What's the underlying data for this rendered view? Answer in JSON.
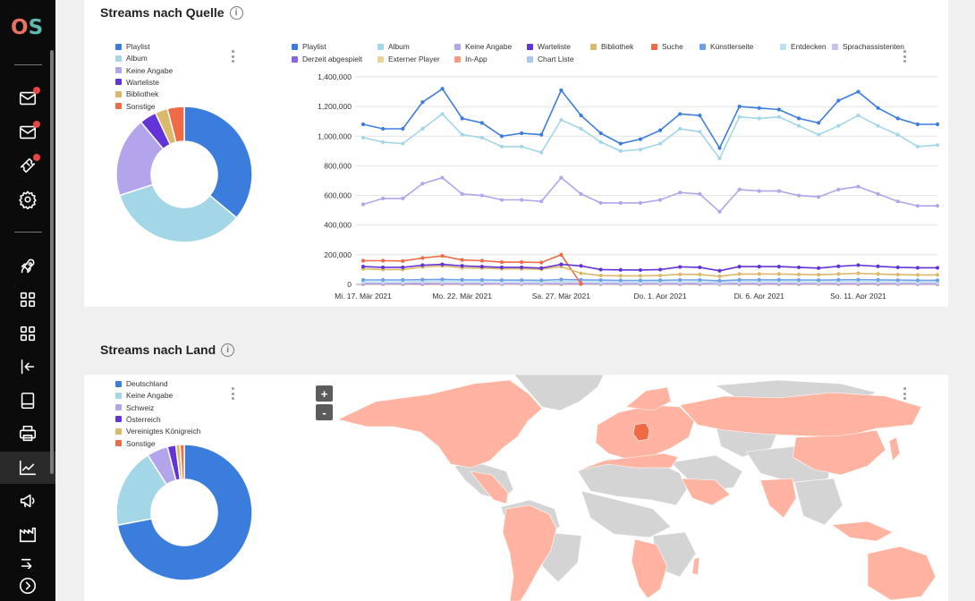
{
  "sidebar": {
    "logo_o": "O",
    "logo_s": "S",
    "items": [
      {
        "icon": "envelope-icon",
        "badge": true
      },
      {
        "icon": "envelope-icon",
        "badge": true
      },
      {
        "icon": "ticket-icon",
        "badge": true
      },
      {
        "icon": "gear-icon",
        "badge": false
      },
      {
        "icon": "rocket-icon",
        "badge": false
      },
      {
        "icon": "grid-icon",
        "badge": false
      },
      {
        "icon": "grid-icon",
        "badge": false
      },
      {
        "icon": "import-icon",
        "badge": false
      },
      {
        "icon": "document-icon",
        "badge": false
      },
      {
        "icon": "printer-icon",
        "badge": false
      },
      {
        "icon": "chart-line-icon",
        "badge": false,
        "active": true
      },
      {
        "icon": "megaphone-icon",
        "badge": false
      },
      {
        "icon": "factory-icon",
        "badge": false
      },
      {
        "icon": "export-icon",
        "badge": false
      },
      {
        "icon": "chevron-right-circle-icon",
        "badge": false
      }
    ]
  },
  "section_source": {
    "title": "Streams nach Quelle",
    "info": "i",
    "donut_legend": [
      {
        "label": "Playlist",
        "color": "#3b7ddd"
      },
      {
        "label": "Album",
        "color": "#a3d6e6"
      },
      {
        "label": "Keine Angabe",
        "color": "#b3a4ec"
      },
      {
        "label": "Warteliste",
        "color": "#6233d6"
      },
      {
        "label": "Bibliothek",
        "color": "#dcb86a"
      },
      {
        "label": "Sonstige",
        "color": "#f06a45"
      }
    ],
    "line_legend": [
      {
        "label": "Playlist",
        "color": "#3b7ddd"
      },
      {
        "label": "Album",
        "color": "#a3d6e6"
      },
      {
        "label": "Keine Angabe",
        "color": "#b3a4ec"
      },
      {
        "label": "Warteliste",
        "color": "#6233d6"
      },
      {
        "label": "Bibliothek",
        "color": "#dcb86a"
      },
      {
        "label": "Suche",
        "color": "#f06a45"
      },
      {
        "label": "Künstlerseite",
        "color": "#6fa0e6"
      },
      {
        "label": "Entdecken",
        "color": "#bde3ee"
      },
      {
        "label": "Sprachassistenten",
        "color": "#c9bfee"
      },
      {
        "label": "Derzeit abgespielt",
        "color": "#8a64e0"
      },
      {
        "label": "Externer Player",
        "color": "#ead39a"
      },
      {
        "label": "In-App",
        "color": "#f39b7c"
      },
      {
        "label": "Chart Liste",
        "color": "#aac8f2"
      }
    ]
  },
  "section_country": {
    "title": "Streams nach Land",
    "info": "i",
    "donut_legend": [
      {
        "label": "Deutschland",
        "color": "#3b7ddd"
      },
      {
        "label": "Keine Angabe",
        "color": "#a3d6e6"
      },
      {
        "label": "Schweiz",
        "color": "#b3a4ec"
      },
      {
        "label": "Österreich",
        "color": "#6233d6"
      },
      {
        "label": "Vereinigtes Königreich",
        "color": "#dcb86a"
      },
      {
        "label": "Sonstige",
        "color": "#f06a45"
      }
    ],
    "zoom_in": "+",
    "zoom_out": "-",
    "map_colors": {
      "active": "#ffb3a0",
      "inactive": "#d4d4d4",
      "highlight": "#f06a45"
    }
  },
  "chart_data": [
    {
      "type": "pie",
      "labels": [
        "Playlist",
        "Album",
        "Keine Angabe",
        "Warteliste",
        "Bibliothek",
        "Sonstige"
      ],
      "values": [
        36,
        34,
        19,
        4,
        3,
        4
      ]
    },
    {
      "type": "line",
      "x": [
        "Mi, 17. Mär 2021",
        "18",
        "19",
        "20",
        "21",
        "Mo, 22. Mär 2021",
        "23",
        "24",
        "25",
        "26",
        "Sa, 27. Mär 2021",
        "28",
        "29",
        "30",
        "31",
        "Do, 1. Apr 2021",
        "2",
        "3",
        "4",
        "5",
        "Di, 6. Apr 2021",
        "7",
        "8",
        "9",
        "10",
        "So, 11. Apr 2021",
        "12",
        "13",
        "14",
        "15"
      ],
      "xticks": [
        "Mi, 17. Mär 2021",
        "Mo, 22. Mär 2021",
        "Sa, 27. Mär 2021",
        "Do, 1. Apr 2021",
        "Di, 6. Apr 2021",
        "So, 11. Apr 2021"
      ],
      "xtick_index": [
        0,
        5,
        10,
        15,
        20,
        25
      ],
      "ylim": [
        0,
        1400000
      ],
      "yticks": [
        "0",
        "200,000",
        "400,000",
        "600,000",
        "800,000",
        "1,000,000",
        "1,200,000",
        "1,400,000"
      ],
      "grid": true,
      "series": [
        {
          "name": "Playlist",
          "color": "#3b7ddd",
          "values": [
            1080000,
            1050000,
            1050000,
            1230000,
            1320000,
            1120000,
            1090000,
            1000000,
            1020000,
            1010000,
            1310000,
            1140000,
            1020000,
            950000,
            980000,
            1040000,
            1150000,
            1140000,
            920000,
            1200000,
            1190000,
            1180000,
            1120000,
            1090000,
            1240000,
            1300000,
            1190000,
            1120000,
            1080000,
            1080000
          ]
        },
        {
          "name": "Album",
          "color": "#a3d6e6",
          "values": [
            990000,
            960000,
            950000,
            1050000,
            1150000,
            1010000,
            990000,
            930000,
            930000,
            890000,
            1110000,
            1050000,
            960000,
            900000,
            910000,
            950000,
            1050000,
            1030000,
            850000,
            1130000,
            1120000,
            1130000,
            1070000,
            1010000,
            1070000,
            1140000,
            1070000,
            1010000,
            930000,
            940000
          ]
        },
        {
          "name": "Keine Angabe",
          "color": "#b3a4ec",
          "values": [
            540000,
            580000,
            580000,
            680000,
            720000,
            610000,
            600000,
            570000,
            570000,
            560000,
            720000,
            610000,
            550000,
            550000,
            550000,
            570000,
            620000,
            610000,
            490000,
            640000,
            630000,
            630000,
            600000,
            590000,
            640000,
            660000,
            610000,
            560000,
            530000,
            530000
          ]
        },
        {
          "name": "Warteliste",
          "color": "#6233d6",
          "values": [
            120000,
            115000,
            115000,
            130000,
            135000,
            125000,
            120000,
            115000,
            115000,
            110000,
            135000,
            125000,
            100000,
            98000,
            97000,
            100000,
            118000,
            115000,
            92000,
            120000,
            120000,
            120000,
            115000,
            110000,
            122000,
            130000,
            122000,
            115000,
            112000,
            112000
          ]
        },
        {
          "name": "Bibliothek",
          "color": "#dcb86a",
          "values": [
            105000,
            100000,
            100000,
            118000,
            125000,
            112000,
            110000,
            105000,
            105000,
            102000,
            120000,
            75000,
            60000,
            58000,
            58000,
            60000,
            68000,
            67000,
            55000,
            70000,
            70000,
            70000,
            67000,
            65000,
            70000,
            75000,
            70000,
            66000,
            64000,
            64000
          ]
        },
        {
          "name": "Suche",
          "color": "#f06a45",
          "values": [
            160000,
            160000,
            158000,
            178000,
            192000,
            165000,
            160000,
            150000,
            150000,
            148000,
            200000,
            5000,
            null,
            null,
            null,
            null,
            null,
            null,
            null,
            null,
            null,
            null,
            null,
            null,
            null,
            null,
            null,
            null,
            null,
            null
          ]
        },
        {
          "name": "Künstlerseite",
          "color": "#6fa0e6",
          "values": [
            30000,
            30000,
            30000,
            32000,
            34000,
            31000,
            30000,
            29000,
            29000,
            28000,
            33000,
            31000,
            29000,
            27000,
            27000,
            28000,
            30000,
            30000,
            25000,
            31000,
            31000,
            31000,
            30000,
            29000,
            31000,
            32000,
            31000,
            29000,
            28000,
            28000
          ]
        },
        {
          "name": "Entdecken",
          "color": "#bde3ee",
          "values": [
            18000,
            18000,
            18000,
            20000,
            21000,
            19000,
            18000,
            17000,
            17000,
            16000,
            20000,
            19000,
            17000,
            16000,
            16000,
            17000,
            18000,
            18000,
            15000,
            19000,
            19000,
            19000,
            18000,
            17000,
            19000,
            20000,
            19000,
            17000,
            16000,
            16000
          ]
        },
        {
          "name": "Sprachassistenten",
          "color": "#c9bfee",
          "values": [
            8000,
            8000,
            8000,
            9000,
            9000,
            8000,
            8000,
            7000,
            7000,
            7000,
            9000,
            8000,
            7000,
            7000,
            7000,
            7000,
            8000,
            8000,
            6000,
            8000,
            8000,
            8000,
            8000,
            7000,
            8000,
            8000,
            8000,
            7000,
            7000,
            7000
          ]
        },
        {
          "name": "Derzeit abgespielt",
          "color": "#8a64e0",
          "values": [
            5000,
            5000,
            5000,
            5000,
            6000,
            5000,
            5000,
            5000,
            5000,
            5000,
            6000,
            5000,
            5000,
            4000,
            4000,
            5000,
            5000,
            5000,
            4000,
            5000,
            5000,
            5000,
            5000,
            5000,
            5000,
            5000,
            5000,
            5000,
            4000,
            4000
          ]
        },
        {
          "name": "Externer Player",
          "color": "#ead39a",
          "values": [
            3000,
            3000,
            3000,
            3000,
            4000,
            3000,
            3000,
            3000,
            3000,
            3000,
            4000,
            3000,
            3000,
            3000,
            3000,
            3000,
            3000,
            3000,
            2000,
            3000,
            3000,
            3000,
            3000,
            3000,
            3000,
            3000,
            3000,
            3000,
            3000,
            3000
          ]
        },
        {
          "name": "In-App",
          "color": "#f39b7c",
          "values": [
            2000,
            2000,
            2000,
            2000,
            2000,
            2000,
            2000,
            2000,
            2000,
            2000,
            2000,
            2000,
            2000,
            2000,
            2000,
            2000,
            2000,
            2000,
            2000,
            2000,
            2000,
            2000,
            2000,
            2000,
            2000,
            2000,
            2000,
            2000,
            2000,
            2000
          ]
        },
        {
          "name": "Chart Liste",
          "color": "#aac8f2",
          "values": [
            1000,
            1000,
            1000,
            1000,
            1000,
            1000,
            1000,
            1000,
            1000,
            1000,
            1000,
            1000,
            1000,
            1000,
            1000,
            1000,
            1000,
            1000,
            1000,
            1000,
            1000,
            1000,
            1000,
            1000,
            1000,
            1000,
            1000,
            1000,
            1000,
            1000
          ]
        }
      ]
    },
    {
      "type": "pie",
      "labels": [
        "Deutschland",
        "Keine Angabe",
        "Schweiz",
        "Österreich",
        "Vereinigtes Königreich",
        "Sonstige"
      ],
      "values": [
        72,
        19,
        5,
        2,
        1,
        1
      ]
    }
  ]
}
